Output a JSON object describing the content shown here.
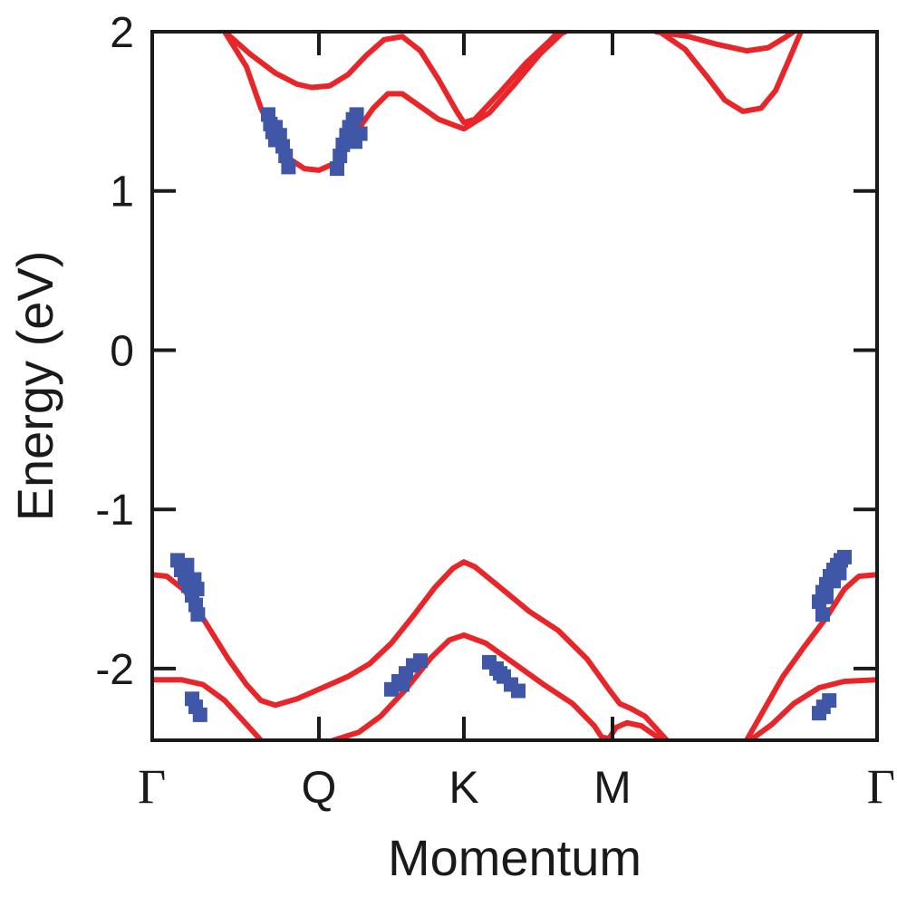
{
  "chart_data": {
    "type": "line",
    "title": "",
    "xlabel": "Momentum",
    "ylabel": "Energy (eV)",
    "xlim": [
      0,
      1
    ],
    "ylim": [
      -2.45,
      2.0
    ],
    "x_ticks": [
      {
        "x": 0.0,
        "label": "Γ"
      },
      {
        "x": 0.23,
        "label": "Q"
      },
      {
        "x": 0.43,
        "label": "K"
      },
      {
        "x": 0.635,
        "label": "M"
      },
      {
        "x": 1.0,
        "label": "Γ"
      }
    ],
    "y_ticks": [
      {
        "y": 2,
        "label": "2"
      },
      {
        "y": 1,
        "label": "1"
      },
      {
        "y": 0,
        "label": "0"
      },
      {
        "y": -1,
        "label": "-1"
      },
      {
        "y": -2,
        "label": "-2"
      }
    ],
    "grid": false,
    "legend": "none",
    "colors": {
      "band_line": "#e8262a",
      "marker": "#3f57a6",
      "axis": "#1a1a1a"
    },
    "series": [
      {
        "kind": "line",
        "points": [
          [
            0.1,
            2.0
          ],
          [
            0.135,
            1.86
          ],
          [
            0.17,
            1.74
          ],
          [
            0.2,
            1.67
          ],
          [
            0.22,
            1.65
          ],
          [
            0.245,
            1.66
          ],
          [
            0.27,
            1.73
          ],
          [
            0.295,
            1.85
          ],
          [
            0.32,
            1.95
          ],
          [
            0.345,
            1.97
          ],
          [
            0.37,
            1.88
          ],
          [
            0.395,
            1.7
          ],
          [
            0.42,
            1.5
          ],
          [
            0.43,
            1.43
          ],
          [
            0.445,
            1.45
          ],
          [
            0.48,
            1.62
          ],
          [
            0.515,
            1.8
          ],
          [
            0.55,
            1.95
          ],
          [
            0.56,
            2.0
          ]
        ]
      },
      {
        "kind": "line",
        "points": [
          [
            0.1,
            2.0
          ],
          [
            0.13,
            1.78
          ],
          [
            0.15,
            1.52
          ],
          [
            0.17,
            1.33
          ],
          [
            0.19,
            1.2
          ],
          [
            0.21,
            1.14
          ],
          [
            0.23,
            1.13
          ],
          [
            0.255,
            1.18
          ],
          [
            0.28,
            1.36
          ],
          [
            0.305,
            1.52
          ],
          [
            0.325,
            1.61
          ],
          [
            0.345,
            1.61
          ],
          [
            0.37,
            1.53
          ],
          [
            0.395,
            1.45
          ],
          [
            0.43,
            1.39
          ],
          [
            0.465,
            1.49
          ],
          [
            0.5,
            1.67
          ],
          [
            0.535,
            1.86
          ],
          [
            0.565,
            1.99
          ],
          [
            0.57,
            2.0
          ]
        ]
      },
      {
        "kind": "line",
        "points": [
          [
            0.695,
            2.0
          ],
          [
            0.74,
            1.97
          ],
          [
            0.78,
            1.92
          ],
          [
            0.82,
            1.88
          ],
          [
            0.85,
            1.9
          ],
          [
            0.875,
            1.97
          ],
          [
            0.885,
            2.0
          ]
        ]
      },
      {
        "kind": "line",
        "points": [
          [
            0.7,
            2.0
          ],
          [
            0.735,
            1.89
          ],
          [
            0.765,
            1.72
          ],
          [
            0.79,
            1.57
          ],
          [
            0.815,
            1.5
          ],
          [
            0.84,
            1.52
          ],
          [
            0.86,
            1.63
          ],
          [
            0.88,
            1.84
          ],
          [
            0.895,
            2.0
          ]
        ]
      },
      {
        "kind": "line",
        "points": [
          [
            0.0,
            -1.41
          ],
          [
            0.02,
            -1.42
          ],
          [
            0.045,
            -1.51
          ],
          [
            0.075,
            -1.72
          ],
          [
            0.105,
            -1.94
          ],
          [
            0.13,
            -2.1
          ],
          [
            0.15,
            -2.2
          ],
          [
            0.17,
            -2.23
          ],
          [
            0.2,
            -2.19
          ],
          [
            0.235,
            -2.12
          ],
          [
            0.27,
            -2.05
          ],
          [
            0.3,
            -1.97
          ],
          [
            0.33,
            -1.84
          ],
          [
            0.36,
            -1.67
          ],
          [
            0.39,
            -1.49
          ],
          [
            0.415,
            -1.37
          ],
          [
            0.43,
            -1.33
          ],
          [
            0.445,
            -1.36
          ],
          [
            0.48,
            -1.49
          ],
          [
            0.52,
            -1.64
          ],
          [
            0.56,
            -1.76
          ],
          [
            0.6,
            -1.94
          ],
          [
            0.63,
            -2.13
          ],
          [
            0.645,
            -2.22
          ],
          [
            0.66,
            -2.25
          ],
          [
            0.68,
            -2.3
          ],
          [
            0.71,
            -2.45
          ]
        ]
      },
      {
        "kind": "line",
        "points": [
          [
            0.0,
            -2.07
          ],
          [
            0.04,
            -2.07
          ],
          [
            0.07,
            -2.1
          ],
          [
            0.1,
            -2.2
          ],
          [
            0.13,
            -2.35
          ],
          [
            0.15,
            -2.45
          ]
        ]
      },
      {
        "kind": "line",
        "points": [
          [
            0.25,
            -2.45
          ],
          [
            0.285,
            -2.4
          ],
          [
            0.315,
            -2.3
          ],
          [
            0.35,
            -2.13
          ],
          [
            0.385,
            -1.93
          ],
          [
            0.41,
            -1.82
          ],
          [
            0.43,
            -1.79
          ],
          [
            0.46,
            -1.84
          ],
          [
            0.5,
            -1.97
          ],
          [
            0.54,
            -2.1
          ],
          [
            0.58,
            -2.22
          ],
          [
            0.61,
            -2.36
          ],
          [
            0.62,
            -2.43
          ],
          [
            0.63,
            -2.44
          ],
          [
            0.64,
            -2.37
          ],
          [
            0.655,
            -2.34
          ],
          [
            0.675,
            -2.36
          ],
          [
            0.7,
            -2.44
          ],
          [
            0.71,
            -2.45
          ]
        ]
      },
      {
        "kind": "line",
        "points": [
          [
            0.82,
            -2.45
          ],
          [
            0.845,
            -2.25
          ],
          [
            0.87,
            -2.05
          ],
          [
            0.9,
            -1.86
          ],
          [
            0.93,
            -1.68
          ],
          [
            0.955,
            -1.5
          ],
          [
            0.975,
            -1.42
          ],
          [
            1.0,
            -1.41
          ]
        ]
      },
      {
        "kind": "line",
        "points": [
          [
            0.825,
            -2.45
          ],
          [
            0.855,
            -2.35
          ],
          [
            0.885,
            -2.22
          ],
          [
            0.92,
            -2.12
          ],
          [
            0.955,
            -2.08
          ],
          [
            1.0,
            -2.07
          ]
        ]
      }
    ],
    "markers": {
      "symbol": "square",
      "points": [
        [
          0.16,
          1.48
        ],
        [
          0.163,
          1.42
        ],
        [
          0.166,
          1.37
        ],
        [
          0.17,
          1.32
        ],
        [
          0.176,
          1.35
        ],
        [
          0.18,
          1.28
        ],
        [
          0.184,
          1.22
        ],
        [
          0.188,
          1.15
        ],
        [
          0.17,
          1.4
        ],
        [
          0.255,
          1.14
        ],
        [
          0.259,
          1.22
        ],
        [
          0.263,
          1.29
        ],
        [
          0.268,
          1.35
        ],
        [
          0.272,
          1.4
        ],
        [
          0.277,
          1.45
        ],
        [
          0.282,
          1.48
        ],
        [
          0.287,
          1.36
        ],
        [
          0.28,
          1.31
        ],
        [
          0.035,
          -1.32
        ],
        [
          0.04,
          -1.38
        ],
        [
          0.045,
          -1.43
        ],
        [
          0.05,
          -1.48
        ],
        [
          0.055,
          -1.54
        ],
        [
          0.06,
          -1.6
        ],
        [
          0.063,
          -1.66
        ],
        [
          0.058,
          -1.44
        ],
        [
          0.062,
          -1.5
        ],
        [
          0.048,
          -1.35
        ],
        [
          0.055,
          -2.19
        ],
        [
          0.06,
          -2.24
        ],
        [
          0.066,
          -2.29
        ],
        [
          0.33,
          -2.13
        ],
        [
          0.34,
          -2.08
        ],
        [
          0.35,
          -2.03
        ],
        [
          0.36,
          -1.98
        ],
        [
          0.37,
          -1.95
        ],
        [
          0.345,
          -2.1
        ],
        [
          0.465,
          -1.96
        ],
        [
          0.475,
          -2.0
        ],
        [
          0.485,
          -2.05
        ],
        [
          0.495,
          -2.1
        ],
        [
          0.505,
          -2.14
        ],
        [
          0.48,
          -2.03
        ],
        [
          0.92,
          -1.58
        ],
        [
          0.925,
          -1.52
        ],
        [
          0.93,
          -1.47
        ],
        [
          0.935,
          -1.42
        ],
        [
          0.94,
          -1.38
        ],
        [
          0.945,
          -1.35
        ],
        [
          0.95,
          -1.32
        ],
        [
          0.955,
          -1.3
        ],
        [
          0.925,
          -1.66
        ],
        [
          0.93,
          -1.55
        ],
        [
          0.94,
          -1.45
        ],
        [
          0.948,
          -1.4
        ],
        [
          0.92,
          -2.28
        ],
        [
          0.926,
          -2.24
        ],
        [
          0.934,
          -2.2
        ]
      ]
    }
  }
}
